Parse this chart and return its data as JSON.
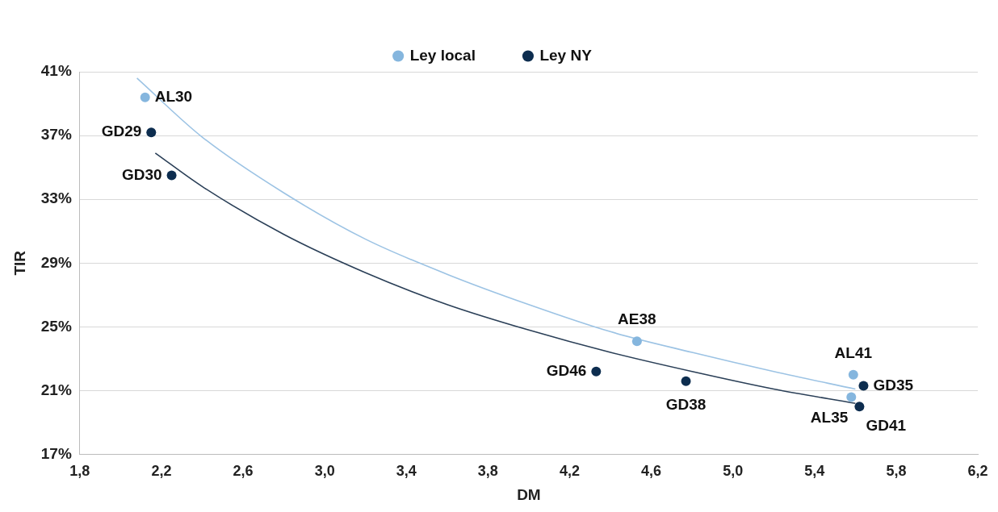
{
  "chart_data": {
    "type": "scatter",
    "xlabel": "DM",
    "ylabel": "TIR",
    "xlim": [
      1.8,
      6.2
    ],
    "ylim": [
      17,
      41
    ],
    "xticks": [
      {
        "value": 1.8,
        "label": "1,8"
      },
      {
        "value": 2.2,
        "label": "2,2"
      },
      {
        "value": 2.6,
        "label": "2,6"
      },
      {
        "value": 3.0,
        "label": "3,0"
      },
      {
        "value": 3.4,
        "label": "3,4"
      },
      {
        "value": 3.8,
        "label": "3,8"
      },
      {
        "value": 4.2,
        "label": "4,2"
      },
      {
        "value": 4.6,
        "label": "4,6"
      },
      {
        "value": 5.0,
        "label": "5,0"
      },
      {
        "value": 5.4,
        "label": "5,4"
      },
      {
        "value": 5.8,
        "label": "5,8"
      },
      {
        "value": 6.2,
        "label": "6,2"
      }
    ],
    "yticks": [
      {
        "value": 17,
        "label": "17%"
      },
      {
        "value": 21,
        "label": "21%"
      },
      {
        "value": 25,
        "label": "25%"
      },
      {
        "value": 29,
        "label": "29%"
      },
      {
        "value": 33,
        "label": "33%"
      },
      {
        "value": 37,
        "label": "37%"
      },
      {
        "value": 41,
        "label": "41%"
      }
    ],
    "grid": "y",
    "legend": "top",
    "marker": "circle",
    "series": [
      {
        "name": "Ley local",
        "color": "#85b6de",
        "x": [
          2.12,
          4.53,
          5.59,
          5.58
        ],
        "values": [
          39.4,
          24.1,
          22.0,
          20.6
        ]
      },
      {
        "name": "Ley NY",
        "color": "#0d2d4f",
        "x": [
          2.15,
          2.25,
          4.33,
          4.77,
          5.64,
          5.62
        ],
        "values": [
          37.2,
          34.5,
          22.2,
          21.6,
          21.3,
          20.0
        ]
      },
      {
        "type": "line",
        "color": "#9cc3e4",
        "marker": "none",
        "x": [
          2.08,
          2.4,
          2.8,
          3.2,
          3.6,
          4.0,
          4.4,
          4.8,
          5.2,
          5.6
        ],
        "values": [
          40.6,
          36.9,
          33.4,
          30.5,
          28.3,
          26.4,
          24.7,
          23.4,
          22.2,
          21.1
        ]
      },
      {
        "type": "line",
        "color": "#2a3f57",
        "marker": "none",
        "x": [
          2.17,
          2.4,
          2.8,
          3.2,
          3.6,
          4.0,
          4.4,
          4.8,
          5.2,
          5.6
        ],
        "values": [
          35.9,
          33.8,
          30.8,
          28.4,
          26.4,
          24.8,
          23.4,
          22.2,
          21.1,
          20.2
        ]
      }
    ],
    "annotations": [
      {
        "text": "AL30",
        "x": 2.12,
        "y": 39.4
      },
      {
        "text": "GD29",
        "x": 2.15,
        "y": 37.2
      },
      {
        "text": "GD30",
        "x": 2.25,
        "y": 34.5
      },
      {
        "text": "AE38",
        "x": 4.53,
        "y": 24.1
      },
      {
        "text": "GD46",
        "x": 4.33,
        "y": 22.2
      },
      {
        "text": "GD38",
        "x": 4.77,
        "y": 21.6
      },
      {
        "text": "AL41",
        "x": 5.59,
        "y": 22.0
      },
      {
        "text": "GD35",
        "x": 5.64,
        "y": 21.3
      },
      {
        "text": "AL35",
        "x": 5.58,
        "y": 20.6
      },
      {
        "text": "GD41",
        "x": 5.62,
        "y": 20.0
      }
    ]
  }
}
